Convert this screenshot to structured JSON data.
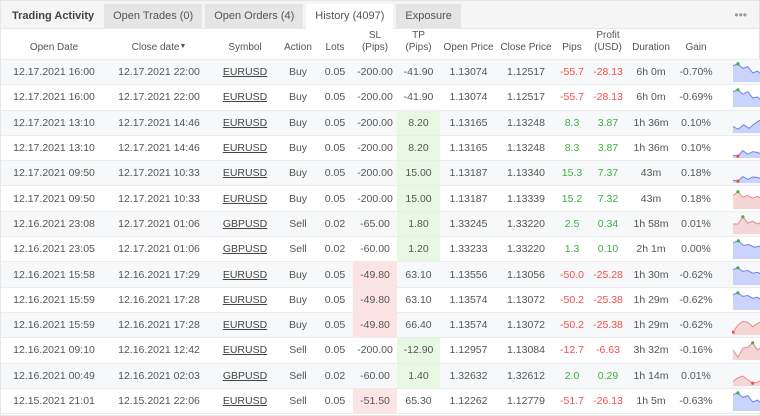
{
  "tabs": {
    "title": "Trading Activity",
    "items": [
      {
        "label": "Open Trades (0)",
        "active": false
      },
      {
        "label": "Open Orders (4)",
        "active": false
      },
      {
        "label": "History (4097)",
        "active": true
      },
      {
        "label": "Exposure",
        "active": false
      }
    ],
    "more_icon": "•••"
  },
  "columns": {
    "open_date": "Open Date",
    "close_date": "Close date",
    "sort_icon": "▼",
    "symbol": "Symbol",
    "action": "Action",
    "lots": "Lots",
    "sl_1": "SL",
    "sl_2": "(Pips)",
    "tp_1": "TP",
    "tp_2": "(Pips)",
    "open_price": "Open Price",
    "close_price": "Close Price",
    "pips": "Pips",
    "profit_1": "Profit",
    "profit_2": "(USD)",
    "duration": "Duration",
    "gain": "Gain",
    "info_icon": "i"
  },
  "colors": {
    "positive": "#3cb043",
    "negative": "#f0504d",
    "highlight_green": "#e7f9e3",
    "highlight_red": "#fce4e4",
    "spark_blue_fill": "#c9d3fb",
    "spark_blue_line": "#6f83ee",
    "spark_red_fill": "#f4d6d6",
    "spark_red_line": "#ec8a8a"
  },
  "rows": [
    {
      "open_date": "12.17.2021 16:00",
      "close_date": "12.17.2021 22:00",
      "symbol": "EURUSD",
      "action": "Buy",
      "lots": "0.05",
      "sl": "-200.00",
      "tp": "-41.90",
      "open_price": "1.13074",
      "close_price": "1.12517",
      "pips": "-55.7",
      "profit": "-28.13",
      "duration": "6h 0m",
      "gain": "-0.70%"
    },
    {
      "open_date": "12.17.2021 16:00",
      "close_date": "12.17.2021 22:00",
      "symbol": "EURUSD",
      "action": "Buy",
      "lots": "0.05",
      "sl": "-200.00",
      "tp": "-41.90",
      "open_price": "1.13074",
      "close_price": "1.12517",
      "pips": "-55.7",
      "profit": "-28.13",
      "duration": "6h 0m",
      "gain": "-0.69%"
    },
    {
      "open_date": "12.17.2021 13:10",
      "close_date": "12.17.2021 14:46",
      "symbol": "EURUSD",
      "action": "Buy",
      "lots": "0.05",
      "sl": "-200.00",
      "tp": "8.20",
      "open_price": "1.13165",
      "close_price": "1.13248",
      "pips": "8.3",
      "profit": "3.87",
      "duration": "1h 36m",
      "gain": "0.10%"
    },
    {
      "open_date": "12.17.2021 13:10",
      "close_date": "12.17.2021 14:46",
      "symbol": "EURUSD",
      "action": "Buy",
      "lots": "0.05",
      "sl": "-200.00",
      "tp": "8.20",
      "open_price": "1.13165",
      "close_price": "1.13248",
      "pips": "8.3",
      "profit": "3.87",
      "duration": "1h 36m",
      "gain": "0.10%"
    },
    {
      "open_date": "12.17.2021 09:50",
      "close_date": "12.17.2021 10:33",
      "symbol": "EURUSD",
      "action": "Buy",
      "lots": "0.05",
      "sl": "-200.00",
      "tp": "15.00",
      "open_price": "1.13187",
      "close_price": "1.13340",
      "pips": "15.3",
      "profit": "7.37",
      "duration": "43m",
      "gain": "0.18%"
    },
    {
      "open_date": "12.17.2021 09:50",
      "close_date": "12.17.2021 10:33",
      "symbol": "EURUSD",
      "action": "Buy",
      "lots": "0.05",
      "sl": "-200.00",
      "tp": "15.00",
      "open_price": "1.13187",
      "close_price": "1.13339",
      "pips": "15.2",
      "profit": "7.32",
      "duration": "43m",
      "gain": "0.18%"
    },
    {
      "open_date": "12.16.2021 23:08",
      "close_date": "12.17.2021 01:06",
      "symbol": "GBPUSD",
      "action": "Sell",
      "lots": "0.02",
      "sl": "-65.00",
      "tp": "1.80",
      "open_price": "1.33245",
      "close_price": "1.33220",
      "pips": "2.5",
      "profit": "0.34",
      "duration": "1h 58m",
      "gain": "0.01%"
    },
    {
      "open_date": "12.16.2021 23:05",
      "close_date": "12.17.2021 01:06",
      "symbol": "GBPUSD",
      "action": "Sell",
      "lots": "0.02",
      "sl": "-60.00",
      "tp": "1.20",
      "open_price": "1.33233",
      "close_price": "1.33220",
      "pips": "1.3",
      "profit": "0.10",
      "duration": "2h 1m",
      "gain": "0.00%"
    },
    {
      "open_date": "12.16.2021 15:58",
      "close_date": "12.16.2021 17:29",
      "symbol": "EURUSD",
      "action": "Buy",
      "lots": "0.05",
      "sl": "-49.80",
      "tp": "63.10",
      "open_price": "1.13556",
      "close_price": "1.13056",
      "pips": "-50.0",
      "profit": "-25.28",
      "duration": "1h 30m",
      "gain": "-0.62%"
    },
    {
      "open_date": "12.16.2021 15:59",
      "close_date": "12.16.2021 17:28",
      "symbol": "EURUSD",
      "action": "Buy",
      "lots": "0.05",
      "sl": "-49.80",
      "tp": "63.10",
      "open_price": "1.13574",
      "close_price": "1.13072",
      "pips": "-50.2",
      "profit": "-25.38",
      "duration": "1h 29m",
      "gain": "-0.62%"
    },
    {
      "open_date": "12.16.2021 15:59",
      "close_date": "12.16.2021 17:28",
      "symbol": "EURUSD",
      "action": "Buy",
      "lots": "0.05",
      "sl": "-49.80",
      "tp": "66.40",
      "open_price": "1.13574",
      "close_price": "1.13072",
      "pips": "-50.2",
      "profit": "-25.38",
      "duration": "1h 29m",
      "gain": "-0.62%"
    },
    {
      "open_date": "12.16.2021 09:10",
      "close_date": "12.16.2021 12:42",
      "symbol": "EURUSD",
      "action": "Sell",
      "lots": "0.05",
      "sl": "-200.00",
      "tp": "-12.90",
      "open_price": "1.12957",
      "close_price": "1.13084",
      "pips": "-12.7",
      "profit": "-6.63",
      "duration": "3h 32m",
      "gain": "-0.16%"
    },
    {
      "open_date": "12.16.2021 00:49",
      "close_date": "12.16.2021 02:03",
      "symbol": "GBPUSD",
      "action": "Sell",
      "lots": "0.02",
      "sl": "-60.00",
      "tp": "1.40",
      "open_price": "1.32632",
      "close_price": "1.32612",
      "pips": "2.0",
      "profit": "0.29",
      "duration": "1h 14m",
      "gain": "0.01%"
    },
    {
      "open_date": "12.15.2021 21:01",
      "close_date": "12.15.2021 22:06",
      "symbol": "EURUSD",
      "action": "Sell",
      "lots": "0.05",
      "sl": "-51.50",
      "tp": "65.30",
      "open_price": "1.12262",
      "close_price": "1.12779",
      "pips": "-51.7",
      "profit": "-26.13",
      "duration": "1h 5m",
      "gain": "-0.63%"
    }
  ]
}
